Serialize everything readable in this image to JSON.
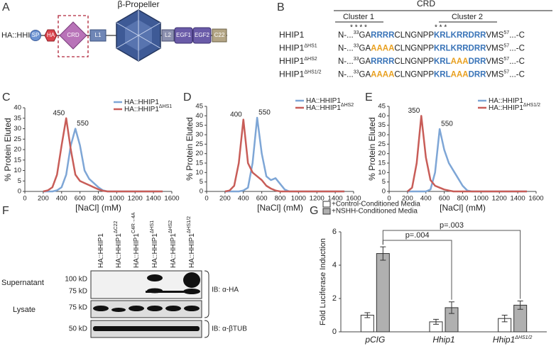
{
  "panel_labels": [
    "A",
    "B",
    "C",
    "D",
    "E",
    "F",
    "G"
  ],
  "diagram": {
    "construct": "HA::HHIP1",
    "title": "β-Propeller",
    "domains": [
      "SP",
      "HA",
      "CRD",
      "L1",
      "L2",
      "EGF1",
      "EGF2",
      "C22"
    ]
  },
  "sequence": {
    "title": "CRD",
    "clusters": [
      "Cluster 1",
      "Cluster 2"
    ],
    "stars": [
      "* * * *",
      "* * *"
    ],
    "rows": [
      {
        "name": "HHIP1",
        "parts": [
          {
            "text": "N-..."
          },
          {
            "text": "33",
            "sup": true
          },
          {
            "text": "GA"
          },
          {
            "text": "RRRR",
            "color": "#3a74b8"
          },
          {
            "text": "CLNGNPP"
          },
          {
            "text": "KRLKRRDRR",
            "color": "#3a74b8"
          },
          {
            "text": "VMS"
          },
          {
            "text": "57",
            "sup": true
          },
          {
            "text": "...-C"
          }
        ]
      },
      {
        "name": "HHIP1",
        "sup": "ΔHS1",
        "parts": [
          {
            "text": "N-..."
          },
          {
            "text": "33",
            "sup": true
          },
          {
            "text": "GA"
          },
          {
            "text": "AAAA",
            "color": "#e8a020"
          },
          {
            "text": "CLNGNPP"
          },
          {
            "text": "KRLKRRDRR",
            "color": "#3a74b8"
          },
          {
            "text": "VMS"
          },
          {
            "text": "57",
            "sup": true
          },
          {
            "text": "...-C"
          }
        ]
      },
      {
        "name": "HHIP1",
        "sup": "ΔHS2",
        "parts": [
          {
            "text": "N-..."
          },
          {
            "text": "33",
            "sup": true
          },
          {
            "text": "GA"
          },
          {
            "text": "RRRR",
            "color": "#3a74b8"
          },
          {
            "text": "CLNGNPP"
          },
          {
            "text": "KRL",
            "color": "#3a74b8"
          },
          {
            "text": "AAA",
            "color": "#e8a020"
          },
          {
            "text": "DRR",
            "color": "#3a74b8"
          },
          {
            "text": "VMS"
          },
          {
            "text": "57",
            "sup": true
          },
          {
            "text": "...-C"
          }
        ]
      },
      {
        "name": "HHIP1",
        "sup": "ΔHS1/2",
        "parts": [
          {
            "text": "N-..."
          },
          {
            "text": "33",
            "sup": true
          },
          {
            "text": "GA"
          },
          {
            "text": "AAAA",
            "color": "#e8a020"
          },
          {
            "text": "CLNGNPP"
          },
          {
            "text": "KRL",
            "color": "#3a74b8"
          },
          {
            "text": "AAA",
            "color": "#e8a020"
          },
          {
            "text": "DRR",
            "color": "#3a74b8"
          },
          {
            "text": "VMS"
          },
          {
            "text": "57",
            "sup": true
          },
          {
            "text": "...-C"
          }
        ]
      }
    ]
  },
  "blot": {
    "lanes": [
      {
        "name": "HA::HHIP1"
      },
      {
        "name": "HA::HHIP1",
        "sup": "ΔC22"
      },
      {
        "name": "HA::HHIP1",
        "sup": "C4R→4A"
      },
      {
        "name": "HA::HHIP1",
        "sup": "ΔHS1"
      },
      {
        "name": "HA::HHIP1",
        "sup": "ΔHS2"
      },
      {
        "name": "HA::HHIP1",
        "sup": "ΔHS1/2"
      }
    ],
    "rows": [
      "Supernatant",
      "Lysate"
    ],
    "markers": [
      "100 kD",
      "75 kD",
      "75 kD",
      "50 kD"
    ],
    "antibodies": [
      "IB: α-HA",
      "IB: α-βTUB"
    ]
  },
  "chart_data": [
    {
      "type": "line",
      "xlabel": "[NaCl] (mM)",
      "ylabel": "% Protein Eluted",
      "legend": "upper right",
      "x": [
        200,
        250,
        300,
        350,
        400,
        450,
        500,
        550,
        600,
        650,
        700,
        750,
        800,
        850,
        900,
        950,
        1000,
        1500
      ],
      "xlim": [
        0,
        1600
      ],
      "xticks": [
        0,
        200,
        400,
        600,
        800,
        1000,
        1200,
        1400,
        1600
      ],
      "ylim": [
        0,
        40
      ],
      "yticks": [
        0,
        5,
        10,
        15,
        20,
        25,
        30,
        35,
        40
      ],
      "series": [
        {
          "name": "HA::HHIP1",
          "color": "#7ea6d6",
          "peak_label": 550,
          "values": [
            0,
            0,
            0,
            0.5,
            2,
            8,
            22,
            30,
            22,
            10,
            6,
            4,
            2,
            0.5,
            0,
            0,
            0,
            0
          ]
        },
        {
          "name": "HA::HHIP1",
          "sup": "ΔHS1",
          "color": "#c85d58",
          "peak_label": 450,
          "values": [
            0,
            0.5,
            2,
            8,
            22,
            35,
            20,
            8,
            5,
            4,
            3,
            2,
            1,
            0.3,
            0,
            0,
            0,
            0
          ]
        }
      ]
    },
    {
      "type": "line",
      "xlabel": "[NaCl] (mM)",
      "ylabel": "% Protein Eluted",
      "legend": "upper right",
      "x": [
        200,
        250,
        300,
        350,
        400,
        450,
        500,
        550,
        600,
        650,
        700,
        750,
        800,
        850,
        900,
        950,
        1000,
        1500
      ],
      "xlim": [
        0,
        1600
      ],
      "xticks": [
        0,
        200,
        400,
        600,
        800,
        1000,
        1200,
        1400,
        1600
      ],
      "ylim": [
        0,
        45
      ],
      "yticks": [
        0,
        5,
        10,
        15,
        20,
        25,
        30,
        35,
        40,
        45
      ],
      "series": [
        {
          "name": "HA::HHIP1",
          "color": "#7ea6d6",
          "peak_label": 550,
          "values": [
            0,
            0,
            0,
            0,
            0.5,
            2,
            15,
            39,
            20,
            8,
            6,
            7,
            4,
            1,
            0,
            0,
            0,
            0
          ]
        },
        {
          "name": "HA::HHIP1",
          "sup": "ΔHS2",
          "color": "#c85d58",
          "peak_label": 400,
          "values": [
            0,
            0.5,
            3,
            15,
            38,
            15,
            10,
            8,
            6,
            3,
            1.5,
            0.5,
            0,
            0,
            0,
            0,
            0,
            0
          ]
        }
      ]
    },
    {
      "type": "line",
      "xlabel": "[NaCl] (mM)",
      "ylabel": "% Protein Eluted",
      "legend": "upper right",
      "x": [
        200,
        250,
        300,
        350,
        400,
        450,
        500,
        550,
        600,
        650,
        700,
        750,
        800,
        850,
        900,
        950,
        1000,
        1500
      ],
      "xlim": [
        0,
        1600
      ],
      "xticks": [
        0,
        200,
        400,
        600,
        800,
        1000,
        1200,
        1400,
        1600
      ],
      "ylim": [
        0,
        45
      ],
      "yticks": [
        0,
        5,
        10,
        15,
        20,
        25,
        30,
        35,
        40,
        45
      ],
      "series": [
        {
          "name": "HA::HHIP1",
          "color": "#7ea6d6",
          "peak_label": 550,
          "values": [
            0,
            0,
            0,
            0,
            0,
            1,
            10,
            33,
            22,
            15,
            11,
            7,
            3,
            0.5,
            0,
            0,
            0,
            0
          ]
        },
        {
          "name": "HA::HHIP1",
          "sup": "ΔHS1/2",
          "color": "#c85d58",
          "peak_label": 350,
          "values": [
            0,
            2,
            15,
            40,
            18,
            6,
            3,
            2,
            1,
            0.5,
            0,
            0,
            0,
            0,
            0,
            0,
            0,
            0
          ]
        }
      ]
    },
    {
      "type": "bar",
      "ylabel": "Fold Luciferase Induction",
      "legend": "top",
      "categories": [
        "pCIG",
        "Hhip1",
        "Hhip1"
      ],
      "category_superscripts": [
        null,
        null,
        "ΔHS1/2"
      ],
      "ylim": [
        0,
        6
      ],
      "yticks": [
        0,
        2,
        4,
        6
      ],
      "comparisons": [
        "p=.004",
        "p=.003"
      ],
      "series": [
        {
          "name": "+Control-Conditioned Media",
          "color": "#ffffff",
          "values": [
            1.0,
            0.6,
            0.8
          ],
          "errors": [
            0.15,
            0.15,
            0.2
          ]
        },
        {
          "name": "+NSHH-Conditioned Media",
          "color": "#b0b0b0",
          "values": [
            4.7,
            1.45,
            1.6
          ],
          "errors": [
            0.4,
            0.35,
            0.25
          ]
        }
      ]
    }
  ]
}
